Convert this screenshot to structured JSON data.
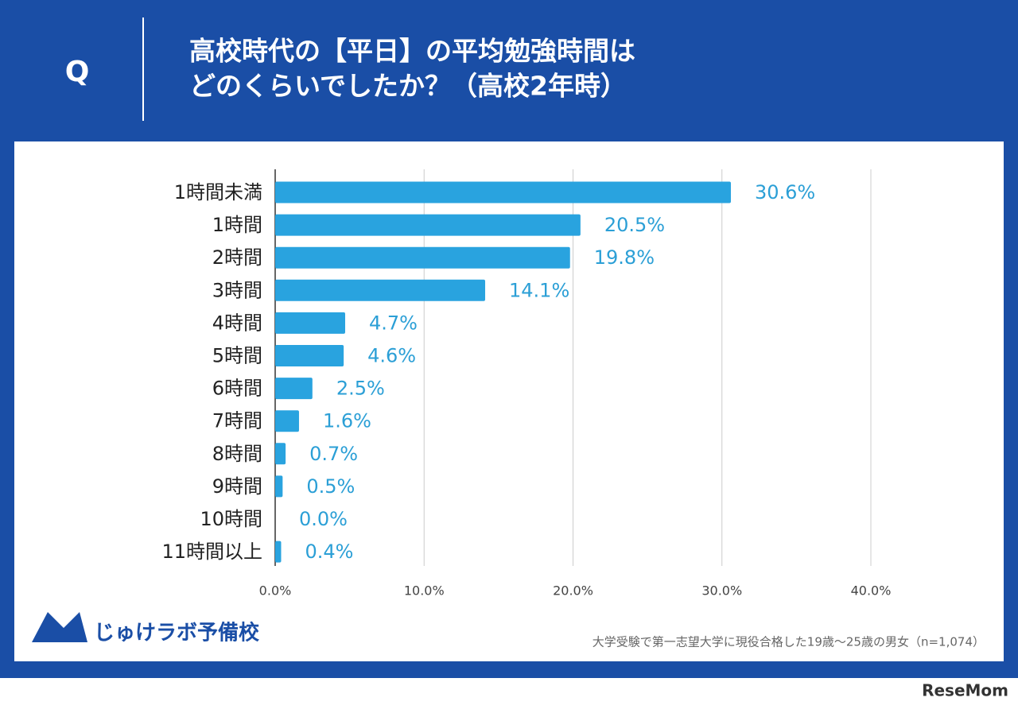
{
  "header": {
    "mark": "Q"
  },
  "chart_data": {
    "type": "bar",
    "orientation": "horizontal",
    "title_lines": [
      "高校時代の【平日】の平均勉強時間は",
      "どのくらいでしたか？（高校2年時）"
    ],
    "categories": [
      "1時間未満",
      "1時間",
      "2時間",
      "3時間",
      "4時間",
      "5時間",
      "6時間",
      "7時間",
      "8時間",
      "9時間",
      "10時間",
      "11時間以上"
    ],
    "values": [
      30.6,
      20.5,
      19.8,
      14.1,
      4.7,
      4.6,
      2.5,
      1.6,
      0.7,
      0.5,
      0.0,
      0.4
    ],
    "value_labels": [
      "30.6%",
      "20.5%",
      "19.8%",
      "14.1%",
      "4.7%",
      "4.6%",
      "2.5%",
      "1.6%",
      "0.7%",
      "0.5%",
      "0.0%",
      "0.4%"
    ],
    "color": "#29a3df",
    "label_color": "#2b9fd6",
    "xlim": [
      0,
      40
    ],
    "xticks": [
      {
        "value": 0,
        "label": "0.0%"
      },
      {
        "value": 10,
        "label": "10.0%"
      },
      {
        "value": 20,
        "label": "20.0%"
      },
      {
        "value": 30,
        "label": "30.0%"
      },
      {
        "value": 40,
        "label": "40.0%"
      }
    ],
    "grid": true,
    "note": "大学受験で第一志望大学に現役合格した19歳～25歳の男女（n=1,074）"
  },
  "footer": {
    "brand": "じゅけラボ予備校",
    "watermark": "ReseMom"
  }
}
